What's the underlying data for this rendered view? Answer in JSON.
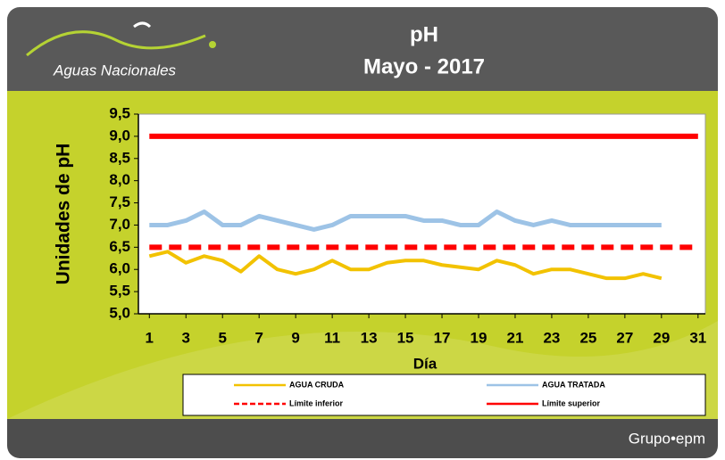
{
  "header": {
    "logo": "Aguas Nacionales",
    "brand": "Grupo•epm"
  },
  "chart_data": {
    "type": "line",
    "title": "pH",
    "subtitle": "Mayo - 2017",
    "y_label": "Unidades de pH",
    "x_label": "Día",
    "x": [
      1,
      2,
      3,
      4,
      5,
      6,
      7,
      8,
      9,
      10,
      11,
      12,
      13,
      14,
      15,
      16,
      17,
      18,
      19,
      20,
      21,
      22,
      23,
      24,
      25,
      26,
      27,
      28,
      29,
      30,
      31
    ],
    "xlim": [
      0.4,
      31.4
    ],
    "xticks": [
      1,
      3,
      5,
      7,
      9,
      11,
      13,
      15,
      17,
      19,
      21,
      23,
      25,
      27,
      29,
      31
    ],
    "ylim": [
      5.0,
      9.5
    ],
    "yticks": [
      {
        "value": 5.0,
        "label": "5,0"
      },
      {
        "value": 5.5,
        "label": "5,5"
      },
      {
        "value": 6.0,
        "label": "6,0"
      },
      {
        "value": 6.5,
        "label": "6,5"
      },
      {
        "value": 7.0,
        "label": "7,0"
      },
      {
        "value": 7.5,
        "label": "7,5"
      },
      {
        "value": 8.0,
        "label": "8,0"
      },
      {
        "value": 8.5,
        "label": "8,5"
      },
      {
        "value": 9.0,
        "label": "9,0"
      },
      {
        "value": 9.5,
        "label": "9,5"
      }
    ],
    "series": [
      {
        "name": "AGUA CRUDA",
        "color": "#f2c200",
        "width": 4,
        "dash": false,
        "values": [
          6.3,
          6.4,
          6.15,
          6.3,
          6.2,
          5.95,
          6.3,
          6.0,
          5.9,
          6.0,
          6.2,
          6.0,
          6.0,
          6.15,
          6.2,
          6.2,
          6.1,
          6.05,
          6.0,
          6.2,
          6.1,
          5.9,
          6.0,
          6.0,
          5.9,
          5.8,
          5.8,
          5.9,
          5.8,
          null,
          null
        ]
      },
      {
        "name": "AGUA TRATADA",
        "color": "#9dc3e6",
        "width": 5,
        "dash": false,
        "values": [
          7.0,
          7.0,
          7.1,
          7.3,
          7.0,
          7.0,
          7.2,
          7.1,
          7.0,
          6.9,
          7.0,
          7.2,
          7.2,
          7.2,
          7.2,
          7.1,
          7.1,
          7.0,
          7.0,
          7.3,
          7.1,
          7.0,
          7.1,
          7.0,
          7.0,
          7.0,
          7.0,
          7.0,
          7.0,
          null,
          null
        ]
      },
      {
        "name": "Límite inferior",
        "color": "#ff0000",
        "width": 6,
        "dash": true,
        "values": [
          6.5,
          6.5,
          6.5,
          6.5,
          6.5,
          6.5,
          6.5,
          6.5,
          6.5,
          6.5,
          6.5,
          6.5,
          6.5,
          6.5,
          6.5,
          6.5,
          6.5,
          6.5,
          6.5,
          6.5,
          6.5,
          6.5,
          6.5,
          6.5,
          6.5,
          6.5,
          6.5,
          6.5,
          6.5,
          6.5,
          6.5
        ]
      },
      {
        "name": "Límite superior",
        "color": "#ff0000",
        "width": 6,
        "dash": false,
        "values": [
          9.0,
          9.0,
          9.0,
          9.0,
          9.0,
          9.0,
          9.0,
          9.0,
          9.0,
          9.0,
          9.0,
          9.0,
          9.0,
          9.0,
          9.0,
          9.0,
          9.0,
          9.0,
          9.0,
          9.0,
          9.0,
          9.0,
          9.0,
          9.0,
          9.0,
          9.0,
          9.0,
          9.0,
          9.0,
          9.0,
          9.0
        ]
      }
    ]
  }
}
